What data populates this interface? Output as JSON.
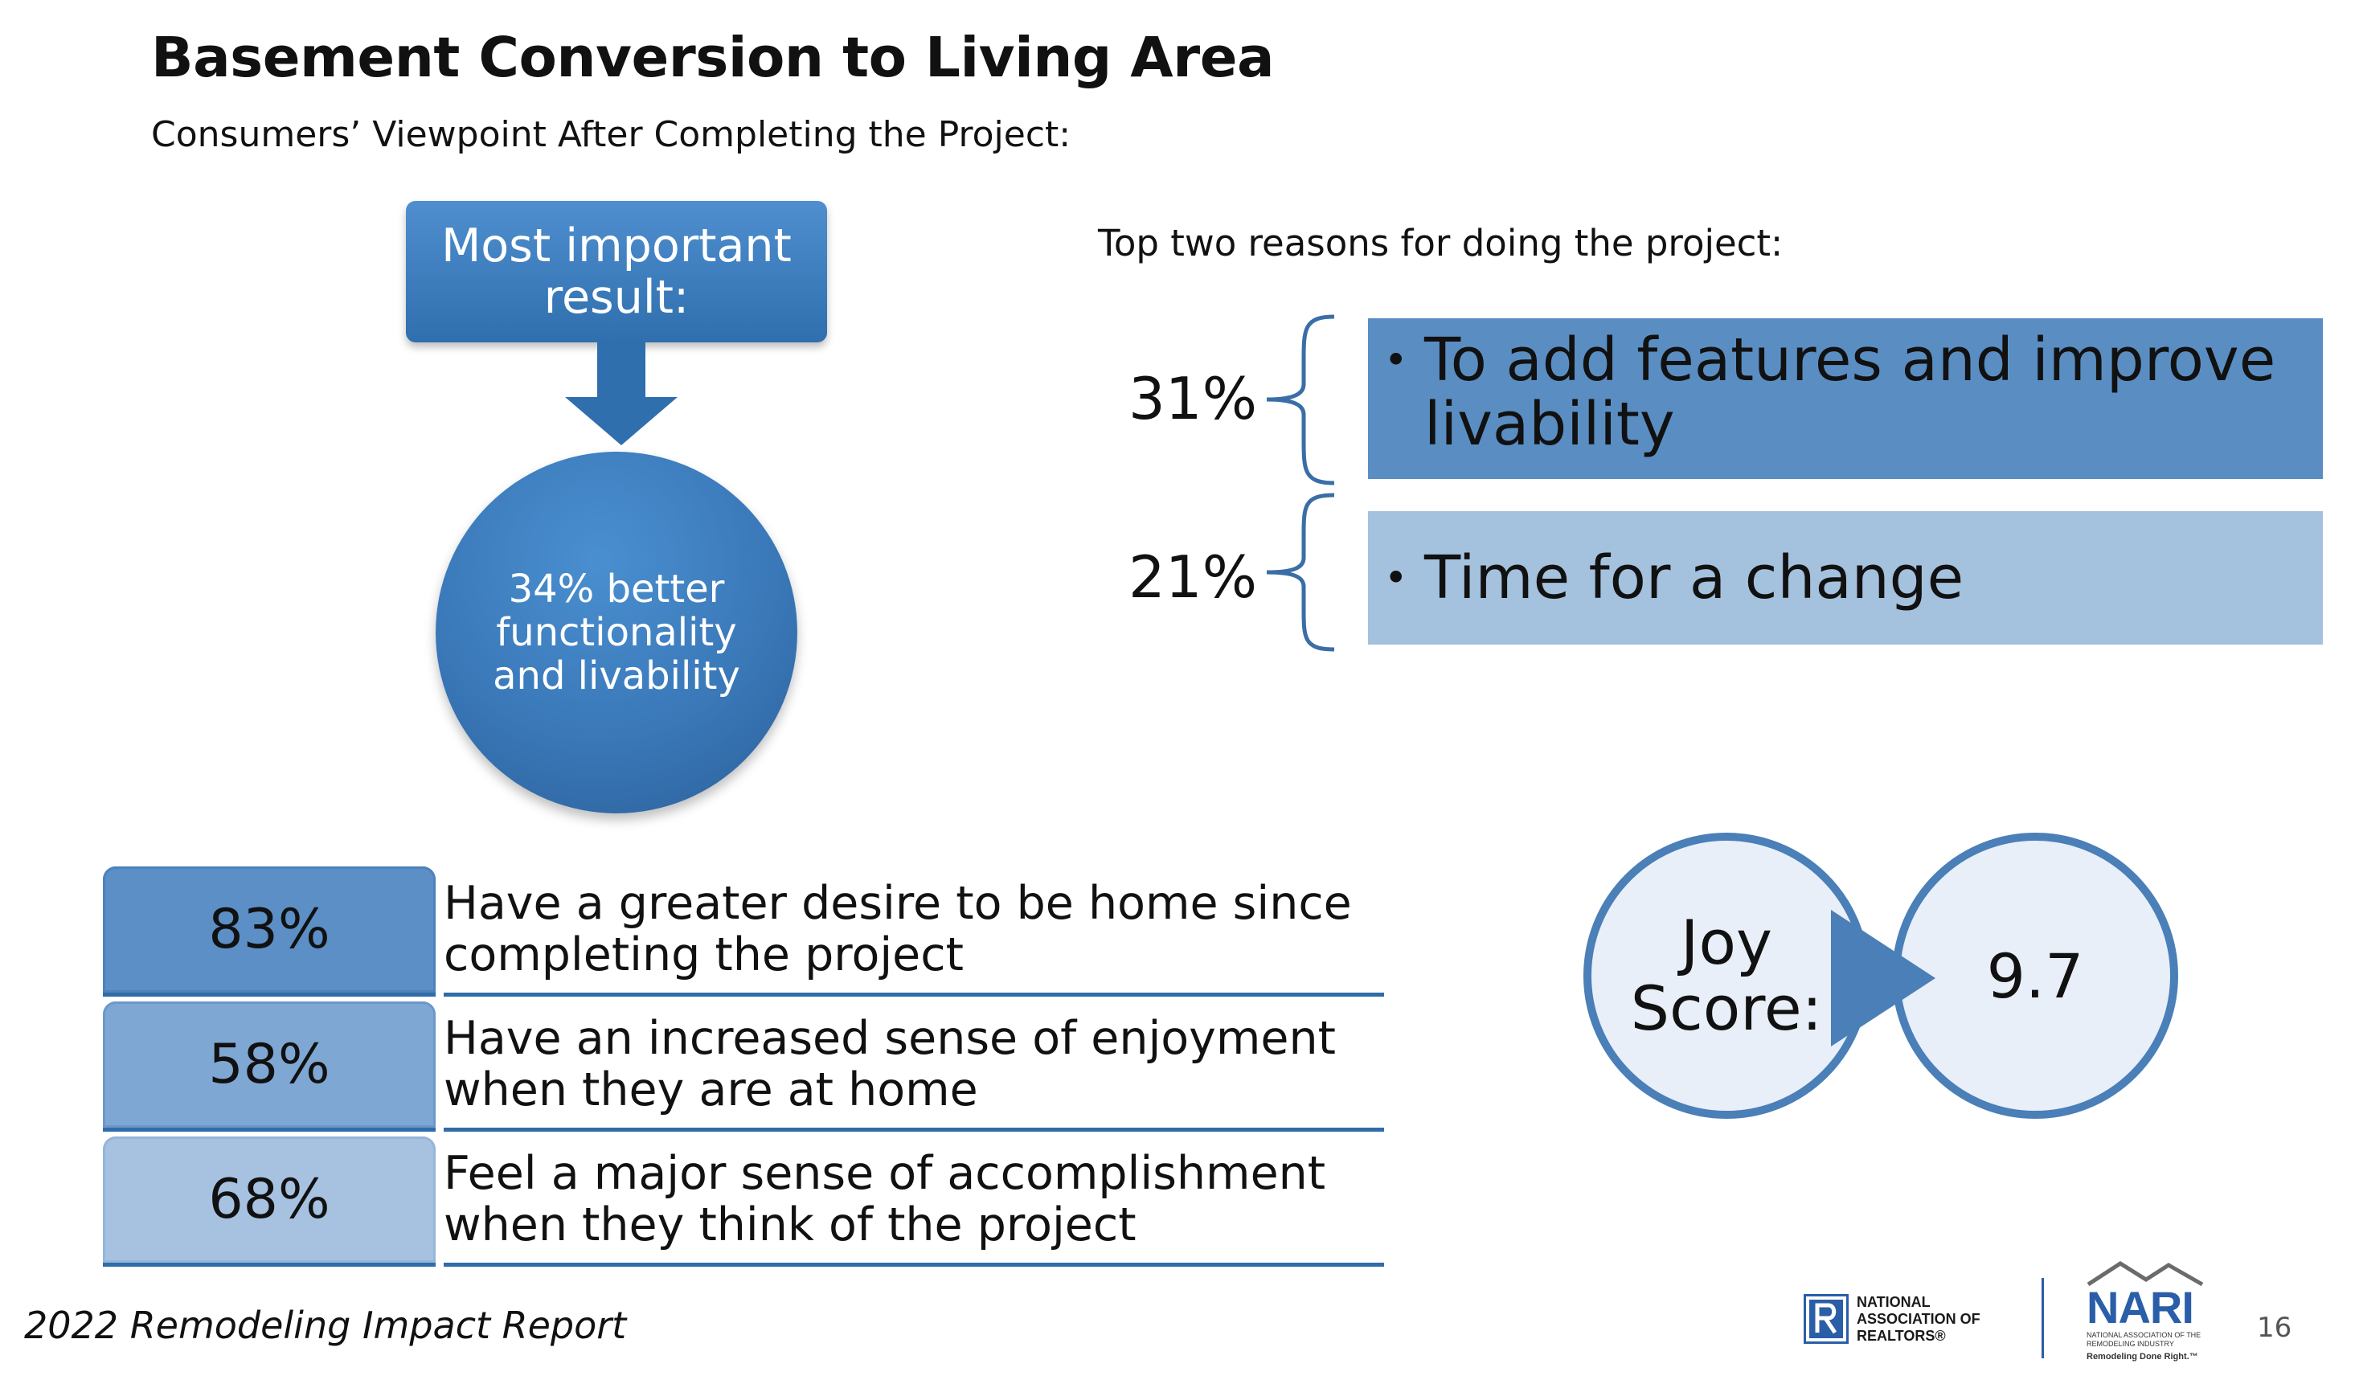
{
  "header": {
    "title": "Basement Conversion to Living Area",
    "subtitle": "Consumers’ Viewpoint After Completing the Project:"
  },
  "result": {
    "box_label": "Most important result:",
    "circle_text": "34% better functionality and livability"
  },
  "reasons": {
    "heading": "Top two reasons for doing the project:",
    "items": [
      {
        "percent": "31%",
        "bullet": "•",
        "text": "To add features and improve livability",
        "color": "#5a8ec3"
      },
      {
        "percent": "21%",
        "bullet": "•",
        "text": "Time for a change",
        "color": "#a4c1de"
      }
    ]
  },
  "stats": [
    {
      "percent": "83%",
      "text": "Have a greater desire to be home since completing the project",
      "color": "#5b8fc6"
    },
    {
      "percent": "58%",
      "text": "Have an increased sense of enjoyment when they are at home",
      "color": "#7ea7d4"
    },
    {
      "percent": "68%",
      "text": "Feel a major sense of accomplishment when they think of the project",
      "color": "#a6c2e0"
    }
  ],
  "joy": {
    "label": "Joy Score:",
    "value": "9.7"
  },
  "footer": {
    "report": "2022 Remodeling Impact Report",
    "page_number": "16"
  },
  "logos": {
    "nar_text": "NATIONAL ASSOCIATION OF REALTORS®",
    "nari_word": "NARI",
    "nari_sub": "NATIONAL ASSOCIATION OF THE REMODELING INDUSTRY",
    "nari_tag": "Remodeling Done Right.™"
  },
  "colors": {
    "accent_dark": "#2f6ca8",
    "accent": "#4a7fb8"
  }
}
